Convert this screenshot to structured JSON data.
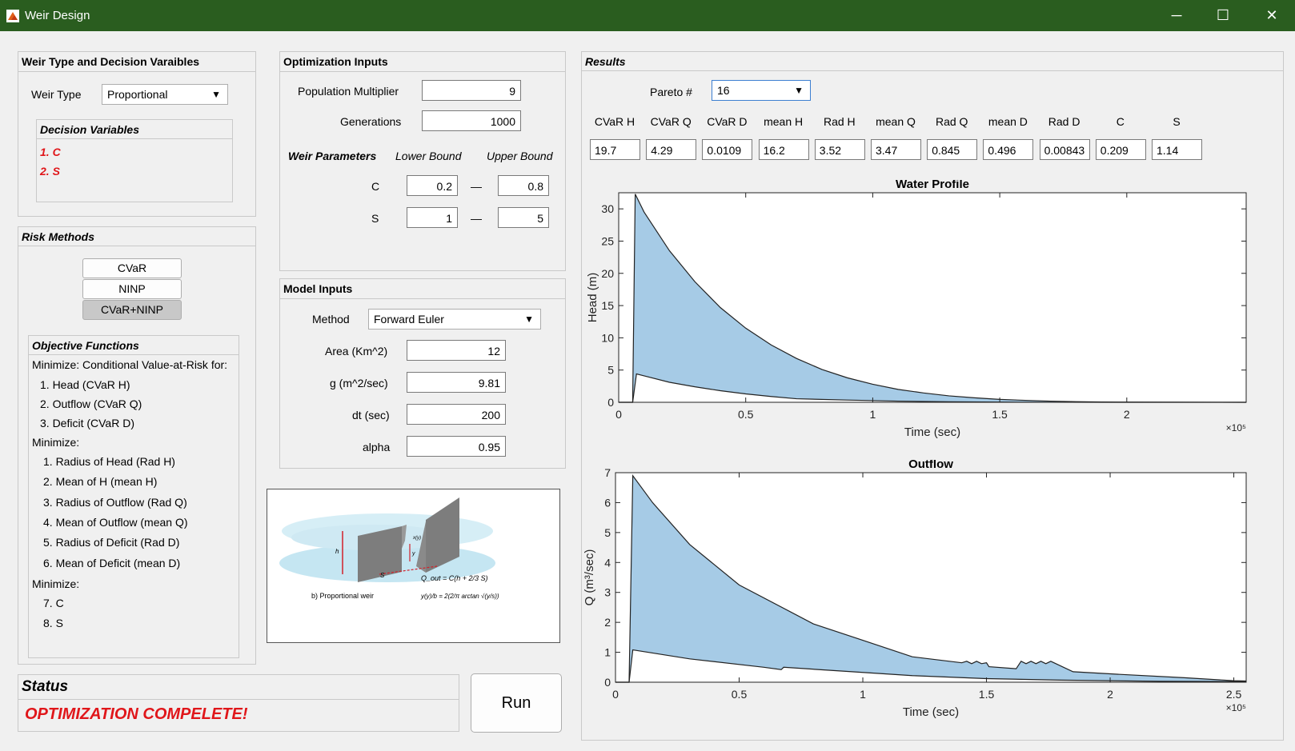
{
  "window": {
    "title": "Weir Design",
    "minimize": "─",
    "maximize": "☐",
    "close": "✕"
  },
  "weir_panel": {
    "title": "Weir Type and Decision Varaibles",
    "weir_type_label": "Weir Type",
    "weir_type_value": "Proportional",
    "decision_title": "Decision Variables",
    "decision_vars": [
      "1. C",
      "2. S"
    ]
  },
  "risk_panel": {
    "title": "Risk Methods",
    "buttons": [
      "CVaR",
      "NINP",
      "CVaR+NINP"
    ],
    "objectives_title": "Objective Functions",
    "objectives": [
      "Minimize: Conditional Value-at-Risk for:",
      "1. Head (CVaR H)",
      "2. Outflow (CVaR Q)",
      "3. Deficit (CVaR D)",
      "Minimize:",
      "1. Radius of Head (Rad H)",
      "2. Mean of H (mean H)",
      "3. Radius of Outflow (Rad Q)",
      "4. Mean of Outflow (mean Q)",
      "5. Radius of Deficit (Rad D)",
      "6. Mean of Deficit (mean D)",
      "Minimize:",
      "7. C",
      "8. S"
    ]
  },
  "status": {
    "title": "Status",
    "message": "OPTIMIZATION COMPELETE!"
  },
  "run_button": "Run",
  "opt_panel": {
    "title": "Optimization Inputs",
    "pop_label": "Population Multiplier",
    "pop_value": "9",
    "gen_label": "Generations",
    "gen_value": "1000",
    "params_label": "Weir Parameters",
    "lower_label": "Lower Bound",
    "upper_label": "Upper Bound",
    "dash": "—",
    "params": [
      {
        "name": "C",
        "lower": "0.2",
        "upper": "0.8"
      },
      {
        "name": "S",
        "lower": "1",
        "upper": "5"
      }
    ]
  },
  "model_panel": {
    "title": "Model Inputs",
    "method_label": "Method",
    "method_value": "Forward Euler",
    "area_label": "Area (Km^2)",
    "area_value": "12",
    "g_label": "g (m^2/sec)",
    "g_value": "9.81",
    "dt_label": "dt (sec)",
    "dt_value": "200",
    "alpha_label": "alpha",
    "alpha_value": "0.95"
  },
  "weir_image": {
    "caption": "b)  Proportional weir",
    "formula1": "Q_out = C(h + 2/3 S)",
    "formula2": "y(y)/b = 2(2/π arctan √(y/s))",
    "lbl_h": "h",
    "lbl_s": "S",
    "lbl_y": "y",
    "lbl_xy": "x(y)"
  },
  "results": {
    "title": "Results",
    "pareto_label": "Pareto #",
    "pareto_value": "16",
    "columns": [
      "CVaR H",
      "CVaR Q",
      "CVaR D",
      "mean H",
      "Rad H",
      "mean Q",
      "Rad Q",
      "mean D",
      "Rad D",
      "C",
      "S"
    ],
    "values": [
      "19.7",
      "4.29",
      "0.0109",
      "16.2",
      "3.52",
      "3.47",
      "0.845",
      "0.496",
      "0.00843",
      "0.209",
      "1.14"
    ]
  },
  "chart_data": [
    {
      "type": "area",
      "title": "Water Profile",
      "xlabel": "Time (sec)",
      "ylabel": "Head (m)",
      "x_exponent": "×10⁵",
      "xlim": [
        0,
        2.47
      ],
      "ylim": [
        0,
        32.5
      ],
      "xticks": [
        0,
        0.5,
        1,
        1.5,
        2
      ],
      "yticks": [
        0,
        5,
        10,
        15,
        20,
        25,
        30
      ],
      "upper": [
        [
          0,
          0
        ],
        [
          0.055,
          0
        ],
        [
          0.065,
          32.3
        ],
        [
          0.1,
          29.5
        ],
        [
          0.2,
          23.5
        ],
        [
          0.3,
          18.7
        ],
        [
          0.4,
          14.7
        ],
        [
          0.5,
          11.5
        ],
        [
          0.6,
          8.9
        ],
        [
          0.7,
          6.8
        ],
        [
          0.8,
          5.1
        ],
        [
          0.9,
          3.8
        ],
        [
          1.0,
          2.8
        ],
        [
          1.1,
          2.0
        ],
        [
          1.2,
          1.45
        ],
        [
          1.3,
          1.0
        ],
        [
          1.4,
          0.7
        ],
        [
          1.5,
          0.45
        ],
        [
          1.6,
          0.3
        ],
        [
          1.7,
          0.18
        ],
        [
          1.8,
          0.1
        ],
        [
          1.9,
          0.05
        ],
        [
          2.0,
          0.03
        ],
        [
          2.47,
          0.0
        ]
      ],
      "lower": [
        [
          0,
          0
        ],
        [
          0.055,
          0
        ],
        [
          0.07,
          4.4
        ],
        [
          0.1,
          4.1
        ],
        [
          0.2,
          3.1
        ],
        [
          0.3,
          2.4
        ],
        [
          0.4,
          1.8
        ],
        [
          0.5,
          1.3
        ],
        [
          0.6,
          0.9
        ],
        [
          0.7,
          0.55
        ],
        [
          0.9,
          0.35
        ],
        [
          1.1,
          0.18
        ],
        [
          1.3,
          0.08
        ],
        [
          1.5,
          0.03
        ],
        [
          2.0,
          0.0
        ],
        [
          2.47,
          0.0
        ]
      ]
    },
    {
      "type": "area",
      "title": "Outflow",
      "xlabel": "Time (sec)",
      "ylabel": "Q (m³/sec)",
      "x_exponent": "×10⁵",
      "xlim": [
        0,
        2.55
      ],
      "ylim": [
        0,
        7
      ],
      "xticks": [
        0,
        0.5,
        1,
        1.5,
        2,
        2.5
      ],
      "yticks": [
        0,
        1,
        2,
        3,
        4,
        5,
        6,
        7
      ],
      "upper": [
        [
          0,
          0
        ],
        [
          0.055,
          0
        ],
        [
          0.07,
          6.9
        ],
        [
          0.15,
          6.0
        ],
        [
          0.3,
          4.6
        ],
        [
          0.5,
          3.25
        ],
        [
          0.8,
          1.95
        ],
        [
          1.0,
          1.4
        ],
        [
          1.2,
          0.85
        ],
        [
          1.4,
          0.65
        ],
        [
          1.42,
          0.7
        ],
        [
          1.44,
          0.62
        ],
        [
          1.46,
          0.7
        ],
        [
          1.48,
          0.62
        ],
        [
          1.5,
          0.65
        ],
        [
          1.51,
          0.52
        ],
        [
          1.62,
          0.45
        ],
        [
          1.64,
          0.7
        ],
        [
          1.66,
          0.62
        ],
        [
          1.68,
          0.7
        ],
        [
          1.7,
          0.62
        ],
        [
          1.72,
          0.7
        ],
        [
          1.74,
          0.62
        ],
        [
          1.76,
          0.7
        ],
        [
          1.85,
          0.35
        ],
        [
          2.0,
          0.28
        ],
        [
          2.3,
          0.15
        ],
        [
          2.5,
          0.05
        ],
        [
          2.55,
          0.04
        ]
      ],
      "lower": [
        [
          0,
          0
        ],
        [
          0.055,
          0
        ],
        [
          0.07,
          1.08
        ],
        [
          0.3,
          0.78
        ],
        [
          0.6,
          0.5
        ],
        [
          0.67,
          0.42
        ],
        [
          0.68,
          0.5
        ],
        [
          0.9,
          0.38
        ],
        [
          1.2,
          0.22
        ],
        [
          1.5,
          0.12
        ],
        [
          1.8,
          0.07
        ],
        [
          2.2,
          0.03
        ],
        [
          2.55,
          0.02
        ]
      ]
    }
  ]
}
